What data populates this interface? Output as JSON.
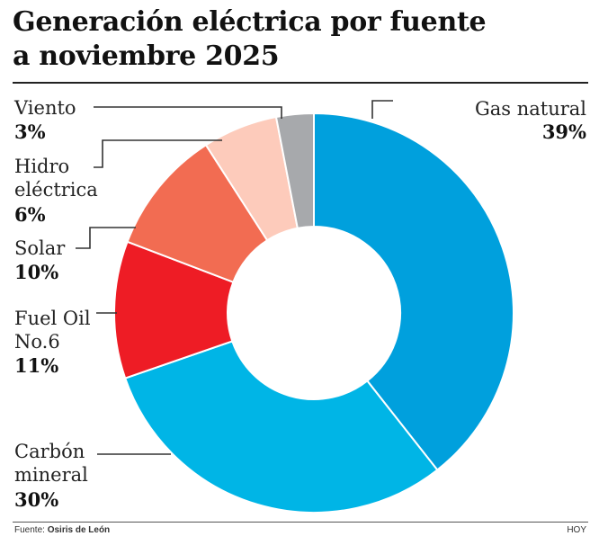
{
  "chart_data": {
    "type": "pie",
    "style": "donut",
    "title_line1": "Generación eléctrica por fuente",
    "title_line2": "a noviembre  2025",
    "slices": [
      {
        "name": "Gas natural",
        "value": 39,
        "label": "39%",
        "color": "#00a0dd"
      },
      {
        "name": "Carbón mineral",
        "value": 30,
        "label": "30%",
        "color": "#00b5e6"
      },
      {
        "name": "Fuel Oil No.6",
        "value": 11,
        "label": "11%",
        "color": "#ee1c25"
      },
      {
        "name": "Solar",
        "value": 10,
        "label": "10%",
        "color": "#f26c52"
      },
      {
        "name": "Hidro eléctrica",
        "value": 6,
        "label": "6%",
        "color": "#fdcbbb"
      },
      {
        "name": "Viento",
        "value": 3,
        "label": "3%",
        "color": "#a7a9ac"
      }
    ],
    "legend_text": {
      "gas": "Gas natural",
      "carbon_1": "Carbón",
      "carbon_2": "mineral",
      "fuel_1": "Fuel Oil",
      "fuel_2": "No.6",
      "solar": "Solar",
      "hidro_1": "Hidro",
      "hidro_2": "eléctrica",
      "viento": "Viento"
    }
  },
  "footer": {
    "source_label": "Fuente:",
    "source_name": "Osiris de León",
    "brand": "HOY"
  }
}
